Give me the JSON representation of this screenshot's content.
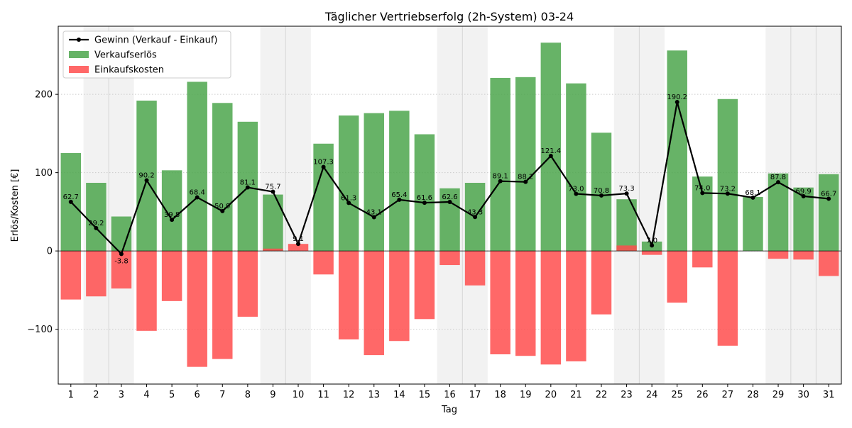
{
  "chart_data": {
    "type": "bar",
    "title": "Täglicher Vertriebserfolg (2h-System) 03-24",
    "xlabel": "Tag",
    "ylabel": "Erlös/Kosten [€]",
    "ylim": [
      -170,
      287
    ],
    "yticks": [
      -100,
      0,
      100,
      200
    ],
    "ytick_labels": [
      "−100",
      "0",
      "100",
      "200"
    ],
    "grid": true,
    "legend_position": "top-left",
    "categories": [
      "1",
      "2",
      "3",
      "4",
      "5",
      "6",
      "7",
      "8",
      "9",
      "10",
      "11",
      "12",
      "13",
      "14",
      "15",
      "16",
      "17",
      "18",
      "19",
      "20",
      "21",
      "22",
      "23",
      "24",
      "25",
      "26",
      "27",
      "28",
      "29",
      "30",
      "31"
    ],
    "shaded_days": [
      2,
      3,
      9,
      10,
      16,
      17,
      23,
      24,
      29,
      30,
      31
    ],
    "series": [
      {
        "name": "Gewinn (Verkauf - Einkauf)",
        "kind": "line",
        "color": "#000000",
        "values": [
          62.7,
          29.2,
          -3.8,
          90.2,
          39.8,
          68.4,
          50.9,
          81.1,
          75.7,
          9.1,
          107.3,
          61.3,
          43.1,
          65.4,
          61.6,
          62.6,
          43.3,
          89.1,
          88.2,
          121.4,
          73.0,
          70.8,
          73.3,
          7.0,
          190.2,
          74.0,
          73.2,
          68.1,
          87.8,
          69.9,
          66.7
        ],
        "labels": [
          "62.7",
          "29.2",
          "-3.8",
          "90.2",
          "39.8",
          "68.4",
          "50.9",
          "81.1",
          "75.7",
          "9.1",
          "107.3",
          "61.3",
          "43.1",
          "65.4",
          "61.6",
          "62.6",
          "43.3",
          "89.1",
          "88.2",
          "121.4",
          "73.0",
          "70.8",
          "73.3",
          "7.0",
          "190.2",
          "74.0",
          "73.2",
          "68.1",
          "87.8",
          "69.9",
          "66.7"
        ]
      },
      {
        "name": "Verkaufserlös",
        "kind": "bar",
        "color": "#4CA64C",
        "values": [
          125,
          87,
          44,
          192,
          103,
          216,
          189,
          165,
          72,
          0,
          137,
          173,
          176,
          179,
          149,
          80,
          87,
          221,
          222,
          266,
          214,
          151,
          66,
          12,
          256,
          95,
          194,
          69,
          99,
          81,
          98
        ]
      },
      {
        "name": "Einkaufskosten",
        "kind": "bar",
        "color": "#FF4D4D",
        "values": [
          -62,
          -58,
          -48,
          -102,
          -64,
          -148,
          -138,
          -84,
          3,
          9,
          -30,
          -113,
          -133,
          -115,
          -87,
          -18,
          -44,
          -132,
          -134,
          -145,
          -141,
          -81,
          7,
          -5,
          -66,
          -21,
          -121,
          0,
          -10,
          -11,
          -32
        ]
      }
    ]
  }
}
